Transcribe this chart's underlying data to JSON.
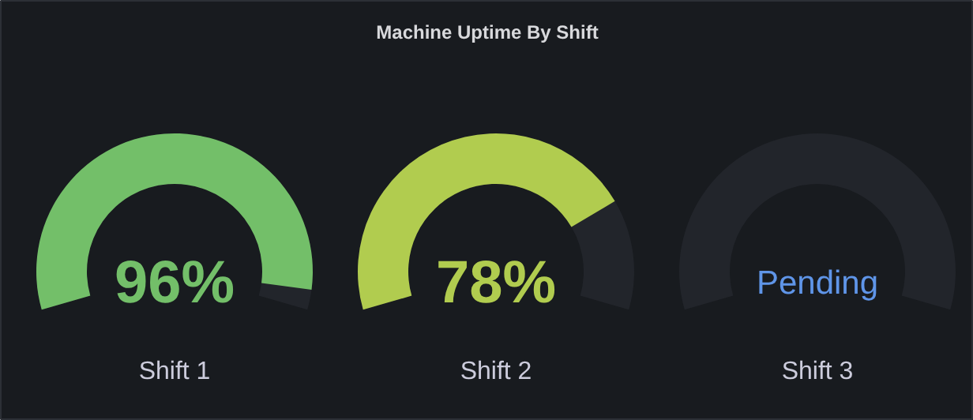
{
  "chart_data": {
    "type": "other",
    "title": "Machine Uptime By Shift",
    "categories": [
      "Shift 1",
      "Shift 2",
      "Shift 3"
    ],
    "values": [
      96,
      78,
      null
    ],
    "value_labels": [
      "96%",
      "78%",
      "Pending"
    ],
    "colors": [
      "#73bf69",
      "#b1cc4f",
      "#5f95e8"
    ]
  }
}
